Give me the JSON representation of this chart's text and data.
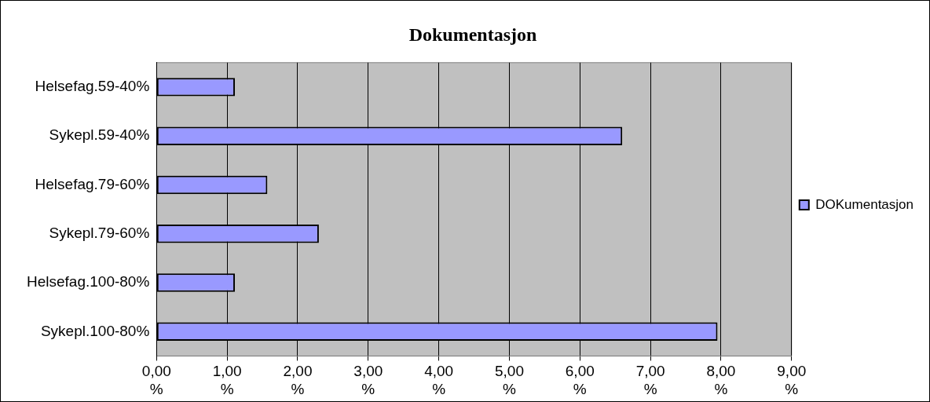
{
  "chart_data": {
    "type": "bar",
    "orientation": "horizontal",
    "title": "Dokumentasjon",
    "categories": [
      "Helsefag.59-40%",
      "Sykepl.59-40%",
      "Helsefag.79-60%",
      "Sykepl.79-60%",
      "Helsefag.100-80%",
      "Sykepl.100-80%"
    ],
    "series": [
      {
        "name": "DOKumentasjon",
        "color": "#9999ff",
        "values": [
          1.11,
          6.6,
          1.57,
          2.3,
          1.11,
          7.95
        ]
      }
    ],
    "xlim": [
      0,
      9
    ],
    "xticks": [
      {
        "value": 0,
        "label": "0,00 %"
      },
      {
        "value": 1,
        "label": "1,00 %"
      },
      {
        "value": 2,
        "label": "2,00 %"
      },
      {
        "value": 3,
        "label": "3,00 %"
      },
      {
        "value": 4,
        "label": "4,00 %"
      },
      {
        "value": 5,
        "label": "5,00 %"
      },
      {
        "value": 6,
        "label": "6,00 %"
      },
      {
        "value": 7,
        "label": "7,00 %"
      },
      {
        "value": 8,
        "label": "8,00 %"
      },
      {
        "value": 9,
        "label": "9,00 %"
      }
    ],
    "grid": "x",
    "legend": "right"
  }
}
